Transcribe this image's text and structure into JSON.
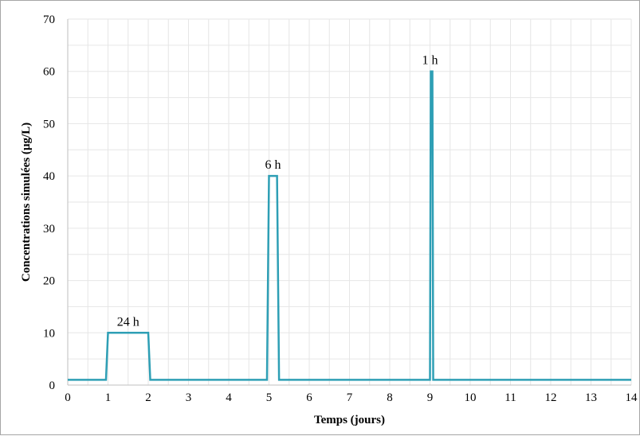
{
  "chart_data": {
    "type": "line",
    "title": "",
    "xlabel": "Temps (jours)",
    "ylabel": "Concentrations simulées (µg/L)",
    "xlim": [
      0,
      14
    ],
    "ylim": [
      0,
      70
    ],
    "xticks": [
      0,
      1,
      2,
      3,
      4,
      5,
      6,
      7,
      8,
      9,
      10,
      11,
      12,
      13,
      14
    ],
    "yticks": [
      0,
      10,
      20,
      30,
      40,
      50,
      60,
      70
    ],
    "grid": true,
    "legend": "none",
    "series": [
      {
        "color": "#2e9fb5",
        "x": [
          0,
          0.95,
          1.0,
          2.0,
          2.05,
          4.95,
          5.0,
          5.2,
          5.25,
          9.0,
          9.02,
          9.06,
          9.08,
          14
        ],
        "y": [
          1,
          1,
          10,
          10,
          1,
          1,
          40,
          40,
          1,
          1,
          60,
          60,
          1,
          1
        ]
      }
    ],
    "annotations": [
      {
        "text": "24 h",
        "x": 1.5,
        "y": 10
      },
      {
        "text": "6 h",
        "x": 5.1,
        "y": 40
      },
      {
        "text": "1 h",
        "x": 9.0,
        "y": 60
      }
    ]
  }
}
